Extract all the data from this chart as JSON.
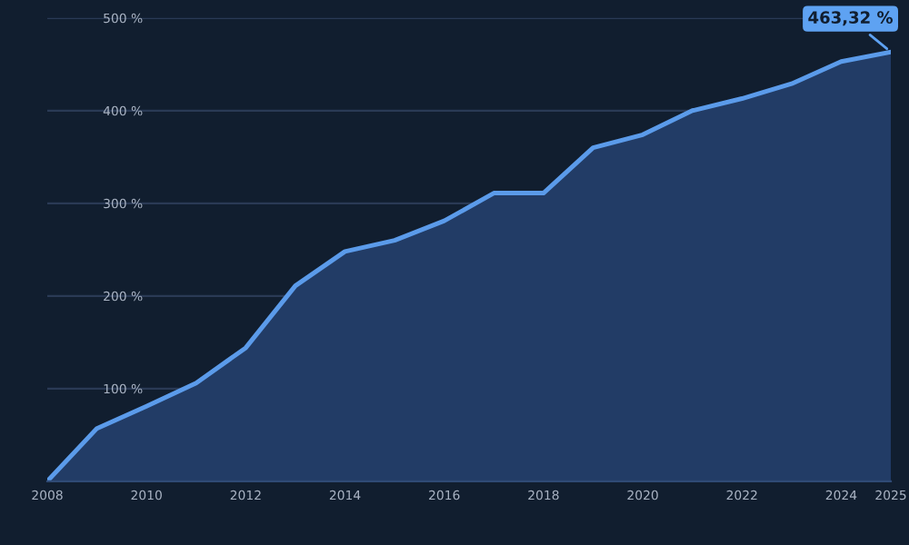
{
  "chart_data": {
    "type": "area",
    "x": [
      2008,
      2009,
      2010,
      2011,
      2012,
      2013,
      2014,
      2015,
      2016,
      2017,
      2018,
      2019,
      2020,
      2021,
      2022,
      2023,
      2024,
      2025
    ],
    "values": [
      0,
      57,
      81,
      106,
      144,
      211,
      248,
      260,
      281,
      311,
      311,
      360,
      374,
      400,
      413,
      429,
      453,
      463.32
    ],
    "color": "#5b9bea",
    "xlim": [
      2008,
      2025
    ],
    "xticks": [
      2008,
      2010,
      2012,
      2014,
      2016,
      2018,
      2020,
      2022,
      2024,
      2025
    ],
    "ylim": [
      0,
      500
    ],
    "yticks": [
      {
        "value": 100,
        "label": "100 %"
      },
      {
        "value": 200,
        "label": "200 %"
      },
      {
        "value": 300,
        "label": "300 %"
      },
      {
        "value": 400,
        "label": "400 %"
      },
      {
        "value": 500,
        "label": "500 %"
      }
    ],
    "grid": "y",
    "legend": false,
    "marker": "none",
    "line_style": "solid",
    "annotations": [
      {
        "text": "463,32 %",
        "x": 2025,
        "y": 463.32
      }
    ]
  }
}
